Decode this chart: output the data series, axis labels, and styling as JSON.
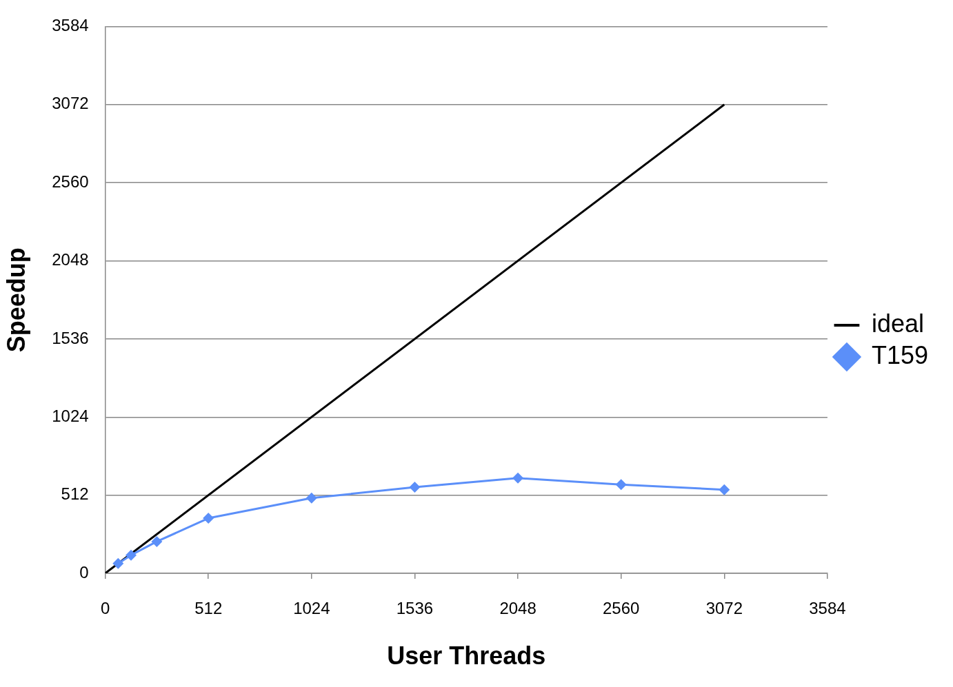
{
  "chart_data": {
    "type": "line",
    "xlabel": "User Threads",
    "ylabel": "Speedup",
    "xlim": [
      0,
      3584
    ],
    "xticks": [
      0,
      512,
      1024,
      1536,
      2048,
      2560,
      3072,
      3584
    ],
    "ylim": [
      0,
      3584
    ],
    "yticks": [
      0,
      512,
      1024,
      1536,
      2048,
      2560,
      3072,
      3584
    ],
    "grid": "y",
    "legend": "right",
    "series": [
      {
        "name": "ideal",
        "color": "#000000",
        "marker": "none",
        "x": [
          0,
          3072
        ],
        "values": [
          0,
          3072
        ]
      },
      {
        "name": "T159",
        "color": "#5b8ff9",
        "marker": "diamond",
        "x": [
          64,
          128,
          256,
          512,
          1024,
          1536,
          2048,
          2560,
          3072
        ],
        "values": [
          64,
          119,
          208,
          361,
          493,
          565,
          624,
          582,
          548
        ]
      }
    ]
  }
}
